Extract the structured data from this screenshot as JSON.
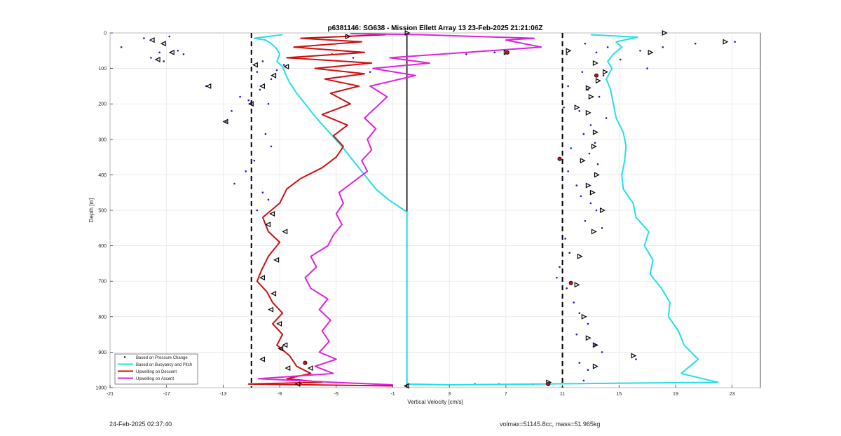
{
  "chart_data": {
    "type": "line",
    "title": "p6381146: SG638 - Mission Ellett Array 13 23-Feb-2025 21:21:06Z",
    "xlabel": "Vertical Velocity [cm/s]",
    "ylabel": "Depth [m]",
    "xlim": [
      -21,
      25
    ],
    "ylim": [
      1000,
      0
    ],
    "y_reversed": true,
    "grid": true,
    "legend_position": "bottom-left",
    "x_ticks": [
      -21,
      -17,
      -13,
      -9,
      -5,
      -1,
      3,
      7,
      11,
      15,
      19,
      23
    ],
    "y_ticks": [
      0,
      100,
      200,
      300,
      400,
      500,
      600,
      700,
      800,
      900,
      1000
    ],
    "reference_lines": [
      {
        "x": -11,
        "style": "dashed",
        "color": "#000000"
      },
      {
        "x": 11,
        "style": "dashed",
        "color": "#000000"
      },
      {
        "x": 0,
        "style": "solid",
        "color": "#000000"
      }
    ],
    "series": [
      {
        "name": "Based on Pressure Change",
        "kind": "points",
        "color": "#1a1acc",
        "points": [
          [
            -20.2,
            40
          ],
          [
            -18.6,
            15
          ],
          [
            -17.5,
            55
          ],
          [
            -16.8,
            10
          ],
          [
            -16.2,
            50
          ],
          [
            -18.1,
            70
          ],
          [
            -17.2,
            80
          ],
          [
            -15.8,
            60
          ],
          [
            -14.2,
            150
          ],
          [
            -12.4,
            220
          ],
          [
            -11.8,
            180
          ],
          [
            -12.8,
            250
          ],
          [
            -11.2,
            190
          ],
          [
            -10.6,
            110
          ],
          [
            -10.2,
            80
          ],
          [
            -9.6,
            130
          ],
          [
            -9.2,
            105
          ],
          [
            -8.7,
            90
          ],
          [
            -9.8,
            200
          ],
          [
            -10.4,
            160
          ],
          [
            -10.0,
            285
          ],
          [
            -9.6,
            320
          ],
          [
            -10.8,
            360
          ],
          [
            -11.4,
            390
          ],
          [
            -12.2,
            425
          ],
          [
            -11.0,
            410
          ],
          [
            -10.2,
            450
          ],
          [
            -9.8,
            470
          ],
          [
            -10.6,
            500
          ],
          [
            -5.3,
            60
          ],
          [
            -3.8,
            70
          ],
          [
            -2.6,
            110
          ],
          [
            4.2,
            60
          ],
          [
            6.2,
            55
          ],
          [
            4.8,
            990
          ],
          [
            6.5,
            990
          ],
          [
            8.9,
            990
          ],
          [
            -7.5,
            990
          ],
          [
            11.3,
            60
          ],
          [
            12.6,
            30
          ],
          [
            13.4,
            55
          ],
          [
            14.2,
            40
          ],
          [
            15.1,
            75
          ],
          [
            12.4,
            110
          ],
          [
            13.9,
            120
          ],
          [
            11.4,
            150
          ],
          [
            12.8,
            160
          ],
          [
            13.6,
            180
          ],
          [
            11.1,
            210
          ],
          [
            12.2,
            220
          ],
          [
            14.1,
            240
          ],
          [
            13.0,
            260
          ],
          [
            12.5,
            285
          ],
          [
            13.3,
            310
          ],
          [
            11.6,
            325
          ],
          [
            12.9,
            340
          ],
          [
            13.5,
            370
          ],
          [
            11.4,
            390
          ],
          [
            11.0,
            410
          ],
          [
            12.0,
            430
          ],
          [
            12.3,
            460
          ],
          [
            13.0,
            480
          ],
          [
            13.4,
            500
          ],
          [
            12.6,
            530
          ],
          [
            13.8,
            550
          ],
          [
            11.2,
            580
          ],
          [
            11.5,
            620
          ],
          [
            10.8,
            660
          ],
          [
            10.6,
            690
          ],
          [
            11.3,
            720
          ],
          [
            11.8,
            760
          ],
          [
            12.2,
            790
          ],
          [
            12.8,
            820
          ],
          [
            12.0,
            850
          ],
          [
            13.3,
            880
          ],
          [
            13.8,
            900
          ],
          [
            12.2,
            930
          ],
          [
            12.8,
            950
          ],
          [
            12.5,
            980
          ],
          [
            16.5,
            50
          ],
          [
            17.0,
            100
          ],
          [
            18.1,
            40
          ],
          [
            20.4,
            30
          ],
          [
            23.2,
            25
          ],
          [
            16.2,
            920
          ]
        ]
      },
      {
        "name": "Based on Buoyancy and Pitch",
        "kind": "line",
        "color": "#22e0e6",
        "points": [
          [
            -8.8,
            5
          ],
          [
            -10.8,
            15
          ],
          [
            -10.0,
            20
          ],
          [
            -9.6,
            30
          ],
          [
            -9.2,
            45
          ],
          [
            -9.0,
            60
          ],
          [
            -9.2,
            80
          ],
          [
            -8.8,
            95
          ],
          [
            -8.6,
            115
          ],
          [
            -8.3,
            140
          ],
          [
            -7.8,
            170
          ],
          [
            -7.2,
            200
          ],
          [
            -6.4,
            240
          ],
          [
            -5.5,
            280
          ],
          [
            -4.6,
            320
          ],
          [
            -3.8,
            360
          ],
          [
            -3.0,
            400
          ],
          [
            -2.2,
            440
          ],
          [
            -1.3,
            470
          ],
          [
            0,
            505
          ],
          [
            0,
            990
          ],
          [
            3.0,
            992
          ],
          [
            22.0,
            985
          ],
          [
            19.4,
            960
          ],
          [
            20.6,
            920
          ],
          [
            19.6,
            880
          ],
          [
            19.2,
            840
          ],
          [
            18.5,
            800
          ],
          [
            18.6,
            760
          ],
          [
            18.0,
            720
          ],
          [
            17.2,
            680
          ],
          [
            17.4,
            640
          ],
          [
            16.8,
            600
          ],
          [
            17.1,
            560
          ],
          [
            16.2,
            520
          ],
          [
            16.0,
            480
          ],
          [
            15.3,
            440
          ],
          [
            15.2,
            400
          ],
          [
            15.4,
            360
          ],
          [
            15.5,
            320
          ],
          [
            15.3,
            280
          ],
          [
            14.8,
            240
          ],
          [
            14.6,
            200
          ],
          [
            14.4,
            160
          ],
          [
            14.1,
            130
          ],
          [
            14.5,
            100
          ],
          [
            14.2,
            80
          ],
          [
            14.6,
            60
          ],
          [
            15.2,
            40
          ],
          [
            14.8,
            25
          ],
          [
            16.3,
            12
          ],
          [
            13.0,
            5
          ]
        ]
      },
      {
        "name": "Upwelling on Descent",
        "kind": "line",
        "color": "#cc1111",
        "points": [
          [
            -1.5,
            5
          ],
          [
            -7.5,
            15
          ],
          [
            -3.2,
            25
          ],
          [
            -8.0,
            40
          ],
          [
            -3.0,
            55
          ],
          [
            -8.5,
            70
          ],
          [
            -2.5,
            85
          ],
          [
            -6.5,
            100
          ],
          [
            -3.0,
            115
          ],
          [
            -5.8,
            130
          ],
          [
            -3.4,
            150
          ],
          [
            -5.4,
            170
          ],
          [
            -4.0,
            200
          ],
          [
            -6.0,
            230
          ],
          [
            -4.2,
            260
          ],
          [
            -5.2,
            290
          ],
          [
            -4.5,
            320
          ],
          [
            -5.0,
            350
          ],
          [
            -6.0,
            380
          ],
          [
            -7.5,
            410
          ],
          [
            -8.5,
            440
          ],
          [
            -9.0,
            480
          ],
          [
            -10.2,
            520
          ],
          [
            -9.8,
            560
          ],
          [
            -9.0,
            590
          ],
          [
            -9.8,
            630
          ],
          [
            -10.3,
            670
          ],
          [
            -10.6,
            700
          ],
          [
            -9.9,
            730
          ],
          [
            -9.5,
            760
          ],
          [
            -8.8,
            790
          ],
          [
            -9.5,
            820
          ],
          [
            -8.8,
            850
          ],
          [
            -9.2,
            880
          ],
          [
            -8.3,
            910
          ],
          [
            -7.8,
            940
          ],
          [
            -6.8,
            960
          ],
          [
            -8.5,
            975
          ],
          [
            -6.0,
            985
          ],
          [
            -11.2,
            990
          ],
          [
            -1.0,
            995
          ]
        ]
      },
      {
        "name": "Upwelling on Ascent",
        "kind": "line",
        "color": "#e020e0",
        "points": [
          [
            -1.0,
            992
          ],
          [
            -5.2,
            985
          ],
          [
            -10.5,
            975
          ],
          [
            -5.2,
            960
          ],
          [
            -6.5,
            940
          ],
          [
            -5.0,
            920
          ],
          [
            -6.2,
            900
          ],
          [
            -5.5,
            870
          ],
          [
            -6.0,
            840
          ],
          [
            -5.4,
            810
          ],
          [
            -6.2,
            780
          ],
          [
            -5.6,
            750
          ],
          [
            -6.8,
            720
          ],
          [
            -7.2,
            690
          ],
          [
            -6.4,
            660
          ],
          [
            -6.8,
            630
          ],
          [
            -5.6,
            600
          ],
          [
            -5.2,
            570
          ],
          [
            -4.6,
            540
          ],
          [
            -5.0,
            510
          ],
          [
            -4.5,
            480
          ],
          [
            -4.8,
            450
          ],
          [
            -3.8,
            420
          ],
          [
            -2.8,
            390
          ],
          [
            -3.2,
            360
          ],
          [
            -2.5,
            330
          ],
          [
            -2.8,
            300
          ],
          [
            -2.2,
            270
          ],
          [
            -3.0,
            240
          ],
          [
            -2.2,
            210
          ],
          [
            -1.4,
            180
          ],
          [
            -2.6,
            150
          ],
          [
            0.6,
            120
          ],
          [
            -2.4,
            100
          ],
          [
            1.6,
            85
          ],
          [
            -1.2,
            70
          ],
          [
            9.5,
            40
          ],
          [
            7.0,
            20
          ],
          [
            9.0,
            15
          ],
          [
            1.0,
            5
          ],
          [
            -4.0,
            2
          ]
        ]
      }
    ],
    "markers": {
      "descent_triangles": [
        [
          -18.0,
          20
        ],
        [
          -17.2,
          30
        ],
        [
          -17.6,
          75
        ],
        [
          -16.6,
          55
        ],
        [
          -14.0,
          150
        ],
        [
          -12.8,
          250
        ],
        [
          -11.0,
          200
        ],
        [
          -10.2,
          150
        ],
        [
          -9.4,
          120
        ],
        [
          -8.5,
          95
        ],
        [
          -10.7,
          90
        ],
        [
          -9.5,
          510
        ],
        [
          -9.8,
          540
        ],
        [
          -8.6,
          560
        ],
        [
          -9.2,
          640
        ],
        [
          -10.2,
          690
        ],
        [
          -9.4,
          735
        ],
        [
          -9.6,
          780
        ],
        [
          -9.0,
          820
        ],
        [
          -8.6,
          880
        ],
        [
          -8.9,
          890
        ],
        [
          -10.2,
          920
        ],
        [
          -8.4,
          945
        ],
        [
          -7.7,
          990
        ],
        [
          0,
          995
        ],
        [
          -6.8,
          945
        ]
      ],
      "ascent_triangles": [
        [
          0,
          0
        ],
        [
          -4.2,
          10
        ],
        [
          7.0,
          55
        ],
        [
          11.4,
          50
        ],
        [
          13.3,
          85
        ],
        [
          14.0,
          110
        ],
        [
          13.5,
          135
        ],
        [
          12.8,
          155
        ],
        [
          13.0,
          180
        ],
        [
          12.0,
          210
        ],
        [
          12.8,
          225
        ],
        [
          13.3,
          280
        ],
        [
          13.2,
          320
        ],
        [
          12.4,
          360
        ],
        [
          13.4,
          400
        ],
        [
          12.8,
          430
        ],
        [
          13.1,
          450
        ],
        [
          13.8,
          500
        ],
        [
          13.2,
          560
        ],
        [
          12.2,
          630
        ],
        [
          12.0,
          710
        ],
        [
          12.5,
          800
        ],
        [
          12.8,
          860
        ],
        [
          13.3,
          880
        ],
        [
          13.3,
          940
        ],
        [
          16.0,
          910
        ],
        [
          10.0,
          985
        ],
        [
          18.2,
          0
        ],
        [
          22.5,
          25
        ],
        [
          17.2,
          55
        ]
      ],
      "red_dots": [
        [
          7.1,
          55
        ],
        [
          10.8,
          355
        ],
        [
          11.6,
          705
        ],
        [
          13.4,
          120
        ],
        [
          10.0,
          990
        ],
        [
          -7.2,
          930
        ]
      ]
    }
  },
  "legend": {
    "items": [
      {
        "label": "Based on Pressure Change",
        "color": "#000000",
        "kind": "dot"
      },
      {
        "label": "Based on Buoyancy and Pitch",
        "color": "#22e0e6",
        "kind": "line"
      },
      {
        "label": "Upwelling on Descent",
        "color": "#cc1111",
        "kind": "line"
      },
      {
        "label": "Upwelling on Ascent",
        "color": "#e020e0",
        "kind": "line"
      }
    ]
  },
  "footer": {
    "left": "24-Feb-2025 02:37:40",
    "right": "volmax=51145.8cc, mass=51.965kg"
  }
}
